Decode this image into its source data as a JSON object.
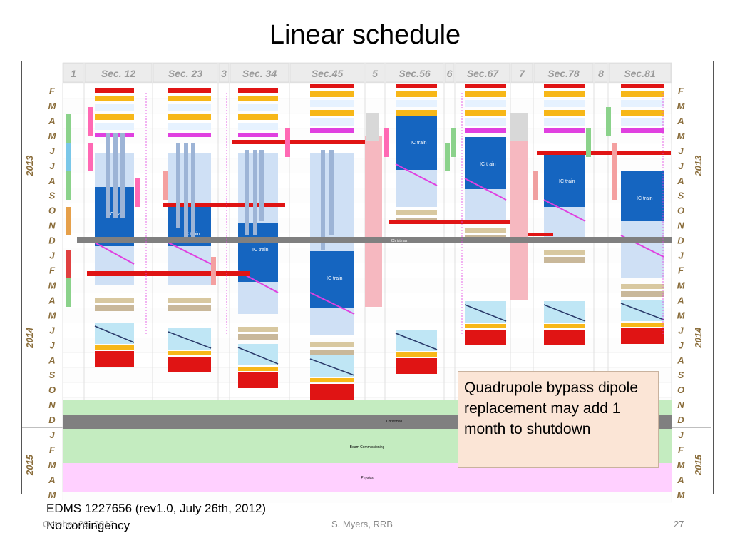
{
  "slide": {
    "title": "Linear schedule",
    "page_number": "27",
    "date": "October 29, 2012",
    "author": "S. Myers, RRB"
  },
  "schedule": {
    "column_headers": [
      "1",
      "Sec. 12",
      "Sec. 23",
      "3",
      "Sec. 34",
      "Sec.45",
      "5",
      "Sec.56",
      "6",
      "Sec.67",
      "7",
      "Sec.78",
      "8",
      "Sec.81"
    ],
    "years": [
      "2013",
      "2014",
      "2015"
    ],
    "months": [
      "F",
      "M",
      "A",
      "M",
      "J",
      "J",
      "A",
      "S",
      "O",
      "N",
      "D",
      "J",
      "F",
      "M",
      "A",
      "M",
      "J",
      "J",
      "A",
      "S",
      "O",
      "N",
      "D",
      "J",
      "F",
      "M",
      "A",
      "M"
    ],
    "bands": {
      "christmas": "Christmas",
      "beam_commissioning": "Beam Commissioning",
      "physics": "Physics"
    },
    "block_label": "IC train",
    "colors": {
      "ic_train": "#1565c0",
      "light_blue": "#cfe0f5",
      "red_bar": "#e01414",
      "gray_bar": "#808080",
      "orange": "#f7b718",
      "pink": "#ffd0ff",
      "green": "#c4ecc0",
      "magenta": "#e040e0",
      "year_text": "#8a6d3b"
    }
  },
  "callout": {
    "text": "Quadrupole bypass dipole replacement may add 1 month to shutdown"
  },
  "notes": {
    "line1": "EDMS 1227656 (rev1.0, July 26th, 2012)",
    "line2": "No contingency"
  }
}
